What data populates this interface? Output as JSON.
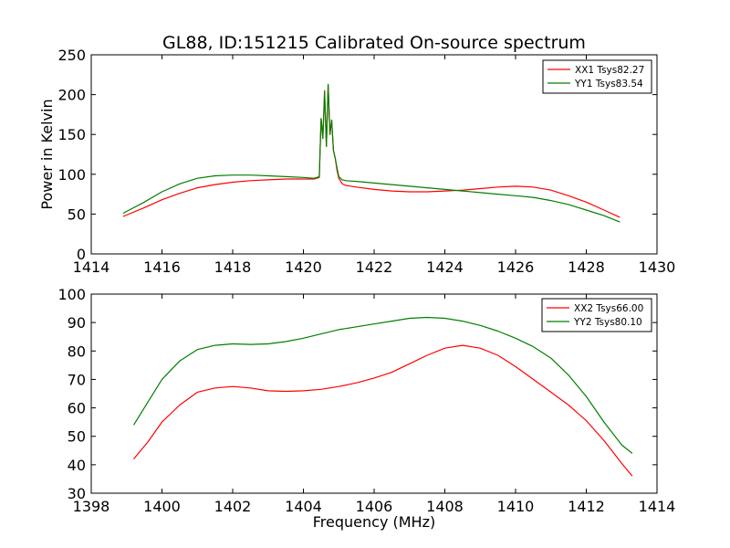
{
  "chart_data": [
    {
      "type": "line",
      "title": "GL88, ID:151215 Calibrated On-source spectrum",
      "xlabel": "",
      "ylabel": "Power in Kelvin",
      "xlim": [
        1414,
        1430
      ],
      "ylim": [
        0,
        250
      ],
      "xticks": [
        "1414",
        "1416",
        "1418",
        "1420",
        "1422",
        "1424",
        "1426",
        "1428",
        "1430"
      ],
      "yticks": [
        "0",
        "50",
        "100",
        "150",
        "200",
        "250"
      ],
      "grid": false,
      "legend": "top-right",
      "series": [
        {
          "name": "XX1 Tsys82.27",
          "color": "#ff0000",
          "x": [
            1414.9,
            1415.5,
            1416.0,
            1416.5,
            1417.0,
            1417.5,
            1418.0,
            1418.5,
            1419.0,
            1419.5,
            1420.0,
            1420.3,
            1420.45,
            1420.5,
            1420.55,
            1420.6,
            1420.65,
            1420.7,
            1420.75,
            1420.8,
            1420.85,
            1420.9,
            1420.95,
            1421.0,
            1421.1,
            1421.2,
            1421.5,
            1422.0,
            1422.5,
            1423.0,
            1423.5,
            1424.0,
            1424.5,
            1425.0,
            1425.5,
            1426.0,
            1426.5,
            1427.0,
            1427.5,
            1428.0,
            1428.5,
            1428.95
          ],
          "y": [
            47,
            58,
            68,
            76,
            83,
            87,
            90,
            92,
            93,
            94,
            94,
            94,
            96,
            170,
            145,
            205,
            135,
            212,
            150,
            168,
            130,
            120,
            105,
            95,
            88,
            86,
            84,
            81,
            79,
            78,
            78,
            79,
            80,
            82,
            84,
            85,
            84,
            80,
            73,
            65,
            55,
            46
          ]
        },
        {
          "name": "YY1 Tsys83.54",
          "color": "#008000",
          "x": [
            1414.9,
            1415.5,
            1416.0,
            1416.5,
            1417.0,
            1417.5,
            1418.0,
            1418.5,
            1419.0,
            1419.5,
            1420.0,
            1420.3,
            1420.45,
            1420.5,
            1420.55,
            1420.6,
            1420.65,
            1420.7,
            1420.75,
            1420.8,
            1420.85,
            1420.9,
            1420.95,
            1421.0,
            1421.1,
            1421.2,
            1421.5,
            1422.0,
            1422.5,
            1423.0,
            1423.5,
            1424.0,
            1424.5,
            1425.0,
            1425.5,
            1426.0,
            1426.5,
            1427.0,
            1427.5,
            1428.0,
            1428.5,
            1428.95
          ],
          "y": [
            51,
            65,
            78,
            88,
            95,
            98,
            99,
            99,
            98,
            97,
            96,
            95,
            97,
            170,
            145,
            203,
            135,
            213,
            150,
            168,
            130,
            120,
            108,
            97,
            93,
            92,
            91,
            89,
            87,
            85,
            83,
            81,
            79,
            77,
            75,
            73,
            71,
            67,
            62,
            55,
            48,
            40
          ]
        }
      ]
    },
    {
      "type": "line",
      "title": "",
      "xlabel": "Frequency (MHz)",
      "ylabel": "",
      "xlim": [
        1398,
        1414
      ],
      "ylim": [
        30,
        100
      ],
      "xticks": [
        "1398",
        "1400",
        "1402",
        "1404",
        "1406",
        "1408",
        "1410",
        "1412",
        "1414"
      ],
      "yticks": [
        "30",
        "40",
        "50",
        "60",
        "70",
        "80",
        "90",
        "100"
      ],
      "grid": false,
      "legend": "top-right",
      "series": [
        {
          "name": "XX2 Tsys66.00",
          "color": "#ff0000",
          "x": [
            1399.2,
            1399.6,
            1400.0,
            1400.5,
            1401.0,
            1401.5,
            1402.0,
            1402.5,
            1403.0,
            1403.5,
            1404.0,
            1404.5,
            1405.0,
            1405.5,
            1406.0,
            1406.5,
            1407.0,
            1407.5,
            1408.0,
            1408.5,
            1409.0,
            1409.5,
            1410.0,
            1410.5,
            1411.0,
            1411.5,
            1412.0,
            1412.5,
            1413.0,
            1413.3
          ],
          "y": [
            42,
            48,
            55,
            61,
            65.5,
            67,
            67.5,
            67,
            66,
            65.8,
            66,
            66.5,
            67.5,
            68.8,
            70.5,
            72.5,
            75.5,
            78.5,
            81,
            82,
            81,
            78.5,
            74.5,
            70,
            65.5,
            61,
            55.5,
            48.5,
            40.5,
            36
          ]
        },
        {
          "name": "YY2 Tsys80.10",
          "color": "#008000",
          "x": [
            1399.2,
            1399.6,
            1400.0,
            1400.5,
            1401.0,
            1401.5,
            1402.0,
            1402.5,
            1403.0,
            1403.5,
            1404.0,
            1404.5,
            1405.0,
            1405.5,
            1406.0,
            1406.5,
            1407.0,
            1407.5,
            1408.0,
            1408.5,
            1409.0,
            1409.5,
            1410.0,
            1410.5,
            1411.0,
            1411.5,
            1412.0,
            1412.5,
            1413.0,
            1413.3
          ],
          "y": [
            54,
            62,
            70,
            76.5,
            80.5,
            82,
            82.5,
            82.3,
            82.5,
            83.3,
            84.5,
            86,
            87.5,
            88.5,
            89.5,
            90.5,
            91.5,
            91.8,
            91.5,
            90.5,
            89,
            87,
            84.5,
            81.5,
            77.5,
            71.5,
            64,
            55,
            47,
            44
          ]
        }
      ]
    }
  ]
}
